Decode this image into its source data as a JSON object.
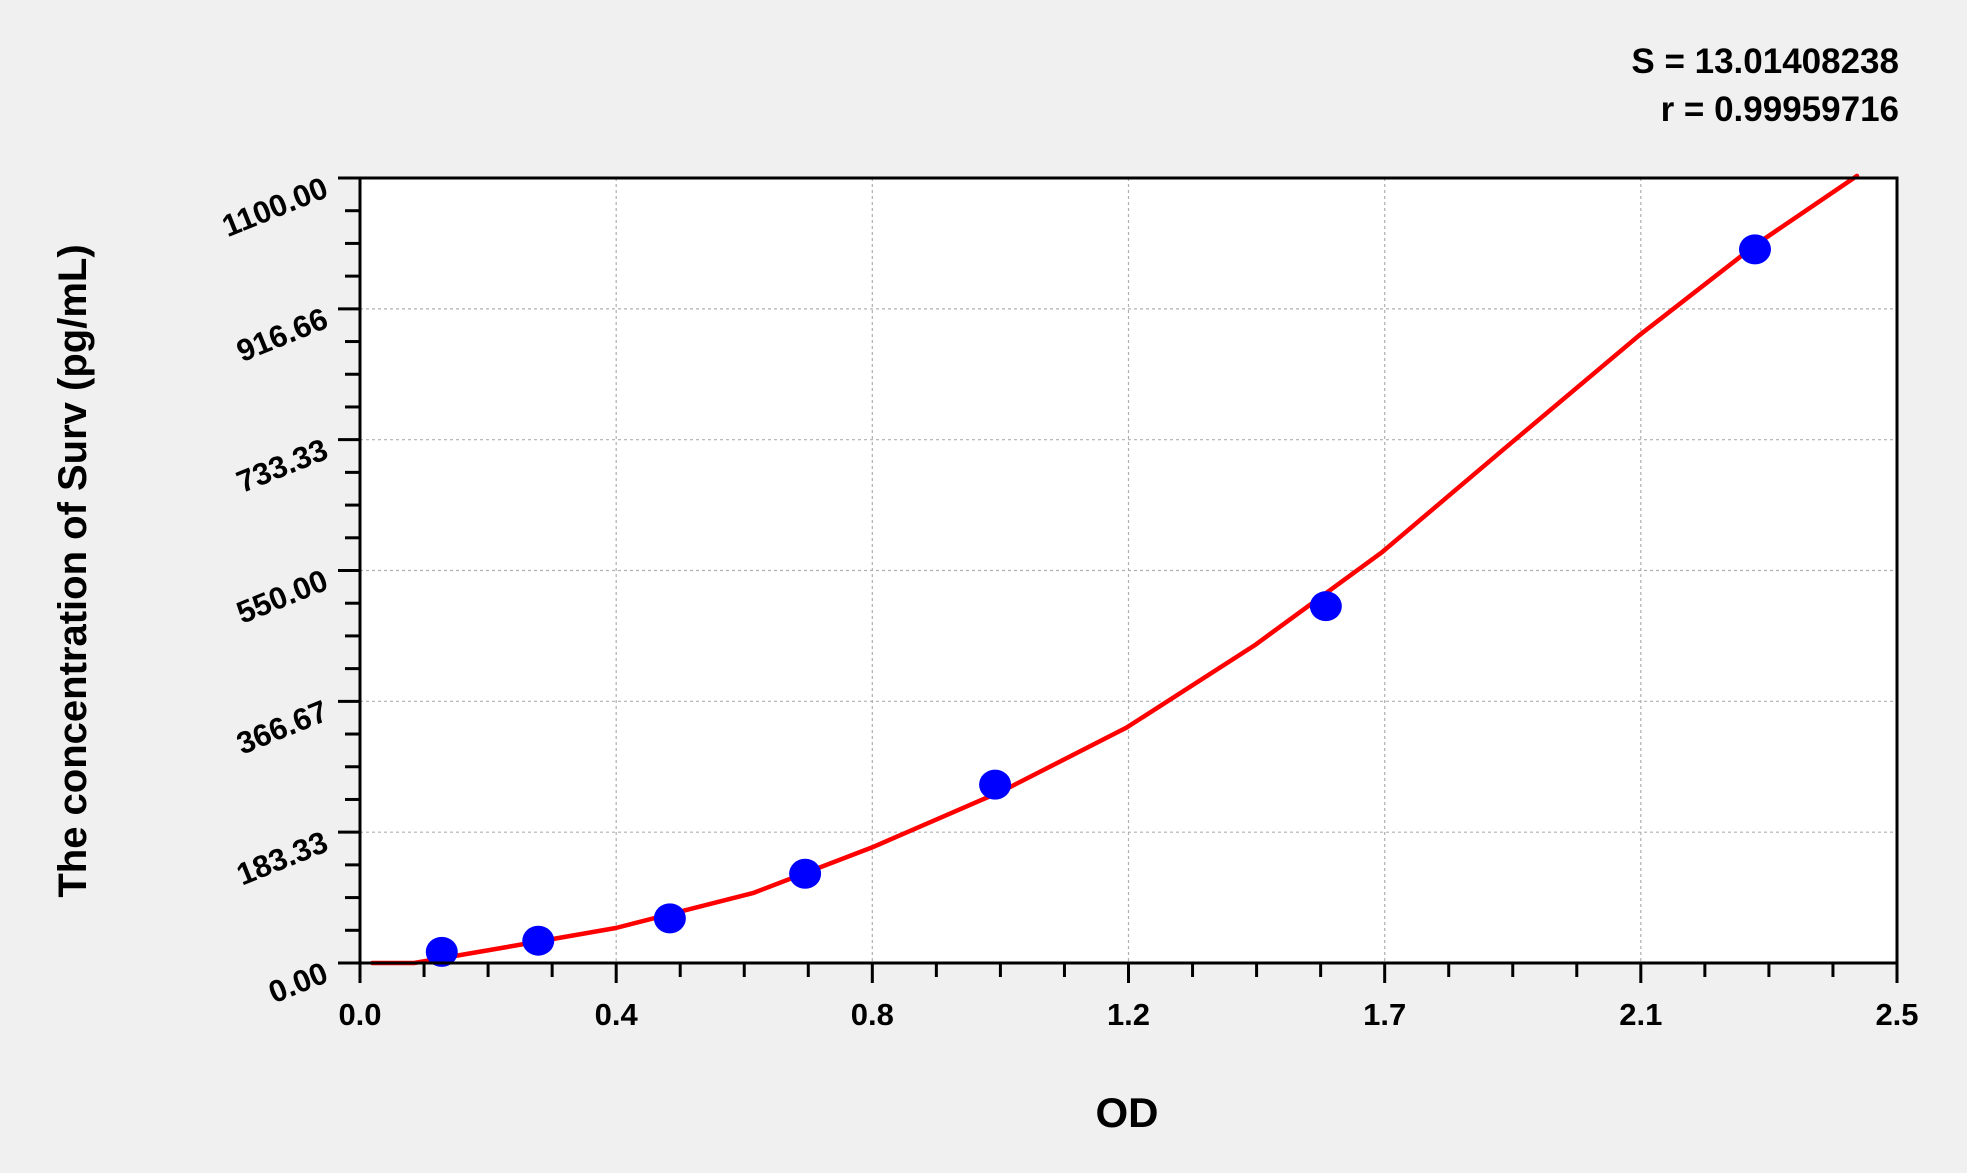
{
  "stats": {
    "s_label": "S = 13.01408238",
    "r_label": "r = 0.99959716"
  },
  "chart_data": {
    "type": "scatter",
    "title": "",
    "xlabel": "OD",
    "ylabel": "The concentration of Surv (pg/mL)",
    "xlim": [
      0,
      2.5
    ],
    "ylim": [
      0,
      1100
    ],
    "x_ticks": [
      0,
      0.4167,
      0.8333,
      1.25,
      1.6667,
      2.0833,
      2.5
    ],
    "x_tick_labels": [
      "0.0",
      "0.4",
      "0.8",
      "1.2",
      "1.7",
      "2.1",
      "2.5"
    ],
    "y_ticks": [
      0,
      183.33,
      366.67,
      550,
      733.33,
      916.66,
      1100
    ],
    "y_tick_labels": [
      "0.00",
      "183.33",
      "366.67",
      "550.00",
      "733.33",
      "916.66",
      "1100.00"
    ],
    "grid": true,
    "colors": {
      "points": "#0000ff",
      "curve": "#ff0000",
      "grid": "#b0b0b0"
    },
    "points": {
      "x": [
        0.133,
        0.29,
        0.504,
        0.724,
        1.033,
        1.571,
        2.269
      ],
      "y": [
        15.6,
        31.25,
        62.5,
        125,
        250,
        500,
        1000
      ]
    },
    "fit_curve": {
      "x": [
        0.02,
        0.088,
        0.23,
        0.416,
        0.639,
        0.833,
        1.047,
        1.247,
        1.455,
        1.663,
        1.863,
        2.08,
        2.271,
        2.435
      ],
      "y": [
        0,
        0,
        21,
        49,
        98,
        162,
        242,
        330,
        445,
        576,
        722,
        879,
        1007,
        1103
      ]
    }
  }
}
